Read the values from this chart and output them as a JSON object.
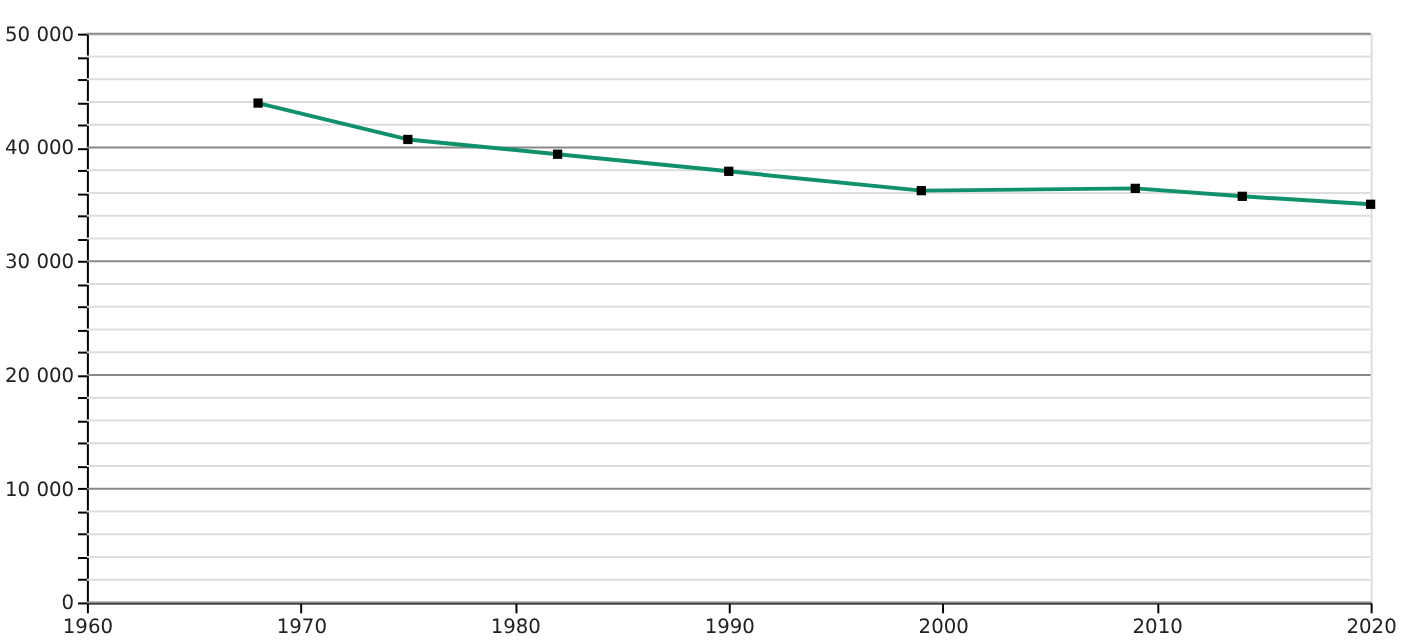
{
  "chart_data": {
    "type": "line",
    "x": [
      1968,
      1975,
      1982,
      1990,
      1999,
      2009,
      2014,
      2020
    ],
    "series": [
      {
        "color": "#11906c",
        "values": [
          43900,
          40700,
          39400,
          37900,
          36200,
          36400,
          35700,
          35000
        ]
      }
    ],
    "xlim": [
      1960,
      2020
    ],
    "xticks": [
      1960,
      1970,
      1980,
      1990,
      2000,
      2010,
      2020
    ],
    "ylim": [
      0,
      50000
    ],
    "yticks": [
      0,
      {
        "value": 2000,
        "label": null
      },
      {
        "value": 4000,
        "label": null
      },
      {
        "value": 6000,
        "label": null
      },
      {
        "value": 8000,
        "label": null
      },
      {
        "value": 10000,
        "label": "10 000"
      },
      {
        "value": 12000,
        "label": null
      },
      {
        "value": 14000,
        "label": null
      },
      {
        "value": 16000,
        "label": null
      },
      {
        "value": 18000,
        "label": null
      },
      {
        "value": 20000,
        "label": "20 000"
      },
      {
        "value": 22000,
        "label": null
      },
      {
        "value": 24000,
        "label": null
      },
      {
        "value": 26000,
        "label": null
      },
      {
        "value": 28000,
        "label": null
      },
      {
        "value": 30000,
        "label": "30 000"
      },
      {
        "value": 32000,
        "label": null
      },
      {
        "value": 34000,
        "label": null
      },
      {
        "value": 36000,
        "label": null
      },
      {
        "value": 38000,
        "label": null
      },
      {
        "value": 40000,
        "label": "40 000"
      },
      {
        "value": 42000,
        "label": null
      },
      {
        "value": 44000,
        "label": null
      },
      {
        "value": 46000,
        "label": null
      },
      {
        "value": 48000,
        "label": null
      },
      {
        "value": 50000,
        "label": "50 000"
      }
    ],
    "grid": "y",
    "marker": "square",
    "line_style": "solid"
  }
}
